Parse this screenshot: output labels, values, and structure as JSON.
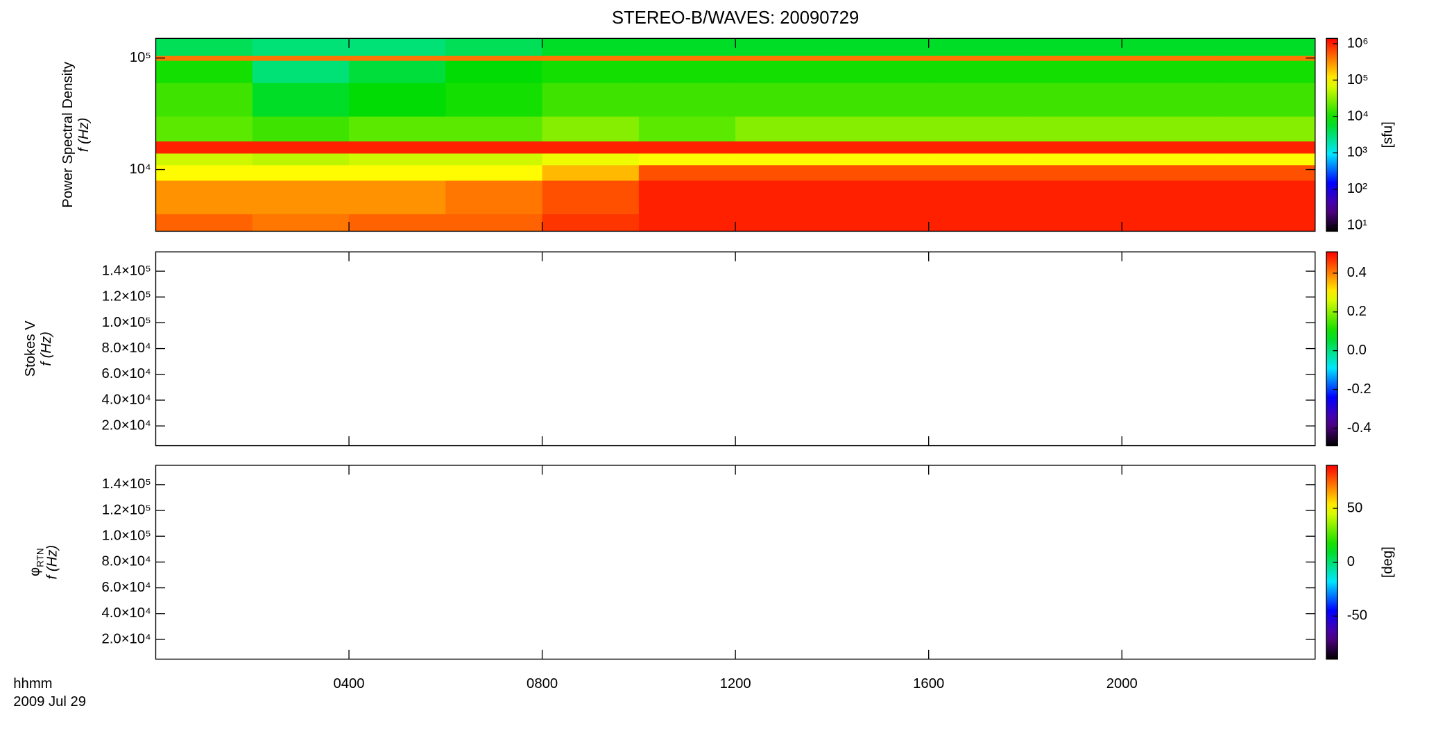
{
  "chart_data": [
    {
      "type": "heatmap",
      "title": "STEREO-B/WAVES: 20090729",
      "ylabel": "Power Spectral Density",
      "ylabel2": "f (Hz)",
      "ylog": true,
      "ylim": [
        2800,
        150000
      ],
      "yticks": [
        {
          "value": 10000,
          "label": "10⁴"
        },
        {
          "value": 100000,
          "label": "10⁵"
        }
      ],
      "xlim": [
        0,
        24
      ],
      "x_bins": [
        0,
        2,
        4,
        6,
        8,
        10,
        12,
        14,
        16,
        18,
        20,
        22,
        24
      ],
      "y_bins": [
        2800,
        4000,
        8000,
        11000,
        14000,
        18000,
        30000,
        60000,
        95000,
        105000,
        150000
      ],
      "values": [
        [
          500000,
          400000,
          500000,
          500000,
          800000,
          1000000,
          1000000,
          1000000,
          1000000,
          1000000,
          1000000,
          1000000
        ],
        [
          300000,
          300000,
          300000,
          400000,
          600000,
          1000000,
          1000000,
          1000000,
          1000000,
          1000000,
          1000000,
          1000000
        ],
        [
          100000,
          100000,
          100000,
          100000,
          200000,
          600000,
          600000,
          600000,
          600000,
          600000,
          600000,
          600000
        ],
        [
          60000,
          50000,
          60000,
          60000,
          80000,
          100000,
          100000,
          100000,
          100000,
          100000,
          100000,
          100000
        ],
        [
          1000000,
          1000000,
          1000000,
          1000000,
          1000000,
          1000000,
          1000000,
          1000000,
          1000000,
          1000000,
          1000000,
          1000000
        ],
        [
          20000,
          15000,
          20000,
          20000,
          30000,
          20000,
          30000,
          30000,
          30000,
          30000,
          30000,
          30000
        ],
        [
          15000,
          6000,
          8000,
          10000,
          15000,
          15000,
          15000,
          15000,
          15000,
          15000,
          15000,
          15000
        ],
        [
          10000,
          3000,
          5000,
          8000,
          10000,
          10000,
          10000,
          10000,
          10000,
          10000,
          10000,
          10000
        ],
        [
          400000,
          400000,
          400000,
          400000,
          400000,
          400000,
          400000,
          400000,
          400000,
          400000,
          400000,
          400000
        ],
        [
          4000,
          3000,
          3000,
          4000,
          6000,
          6000,
          6000,
          6000,
          6000,
          6000,
          6000,
          6000
        ]
      ],
      "colormap": "rainbow",
      "clog": true,
      "clim": [
        7,
        1400000
      ],
      "cticks": [
        {
          "value": 10,
          "label": "10¹"
        },
        {
          "value": 100,
          "label": "10²"
        },
        {
          "value": 1000,
          "label": "10³"
        },
        {
          "value": 10000,
          "label": "10⁴"
        },
        {
          "value": 100000,
          "label": "10⁵"
        },
        {
          "value": 1000000,
          "label": "10⁶"
        }
      ],
      "cbar_label": "[sfu]"
    },
    {
      "type": "heatmap",
      "ylabel": "Stokes V",
      "ylabel2": "f (Hz)",
      "ylog": false,
      "ylim": [
        4700,
        155000
      ],
      "yticks": [
        {
          "value": 20000,
          "label": "2.0×10⁴"
        },
        {
          "value": 40000,
          "label": "4.0×10⁴"
        },
        {
          "value": 60000,
          "label": "6.0×10⁴"
        },
        {
          "value": 80000,
          "label": "8.0×10⁴"
        },
        {
          "value": 100000,
          "label": "1.0×10⁵"
        },
        {
          "value": 120000,
          "label": "1.2×10⁵"
        },
        {
          "value": 140000,
          "label": "1.4×10⁵"
        }
      ],
      "xlim": [
        0,
        24
      ],
      "colormap": "rainbow",
      "clog": false,
      "clim": [
        -0.49,
        0.51
      ],
      "cticks": [
        -0.4,
        -0.2,
        {
          "value": 0,
          "label": "0.0"
        },
        0.2,
        0.4
      ]
    },
    {
      "type": "heatmap",
      "ylabel": "φ",
      "ylabel_sub": "RTN",
      "ylabel2": "f (Hz)",
      "ylog": false,
      "ylim": [
        4700,
        155000
      ],
      "yticks": [
        {
          "value": 20000,
          "label": "2.0×10⁴"
        },
        {
          "value": 40000,
          "label": "4.0×10⁴"
        },
        {
          "value": 60000,
          "label": "6.0×10⁴"
        },
        {
          "value": 80000,
          "label": "8.0×10⁴"
        },
        {
          "value": 100000,
          "label": "1.0×10⁵"
        },
        {
          "value": 120000,
          "label": "1.2×10⁵"
        },
        {
          "value": 140000,
          "label": "1.4×10⁵"
        }
      ],
      "xlim": [
        0,
        24
      ],
      "xticks": [
        {
          "value": 4,
          "label": "0400"
        },
        {
          "value": 8,
          "label": "0800"
        },
        {
          "value": 12,
          "label": "1200"
        },
        {
          "value": 16,
          "label": "1600"
        },
        {
          "value": 20,
          "label": "2000"
        }
      ],
      "xlabel": "hhmm",
      "date": "2009 Jul 29",
      "colormap": "rainbow",
      "clog": false,
      "clim": [
        -90,
        90
      ],
      "cticks": [
        -50,
        0,
        50
      ],
      "cbar_label": "[deg]"
    }
  ]
}
